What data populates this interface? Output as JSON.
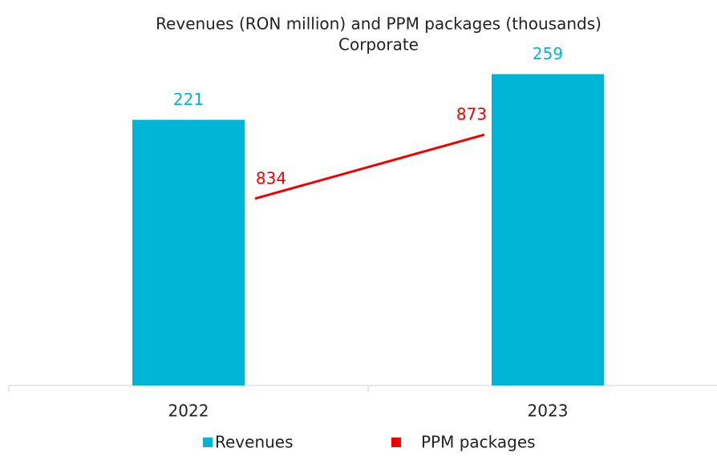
{
  "chart_data": {
    "type": "bar_line",
    "title": "Revenues (RON million) and PPM packages (thousands)",
    "subtitle": "Corporate",
    "categories": [
      "2022",
      "2023"
    ],
    "series": [
      {
        "name": "Revenues",
        "color": "#00b5d6",
        "type": "bar",
        "values": [
          221,
          259
        ]
      },
      {
        "name": "PPM packages",
        "color": "#f20000",
        "type": "line",
        "axis": "y2",
        "values": [
          834,
          873
        ]
      }
    ],
    "ylim": [
      0,
      300
    ],
    "y2lim": [
      720,
      940
    ],
    "legend": "bottom"
  }
}
